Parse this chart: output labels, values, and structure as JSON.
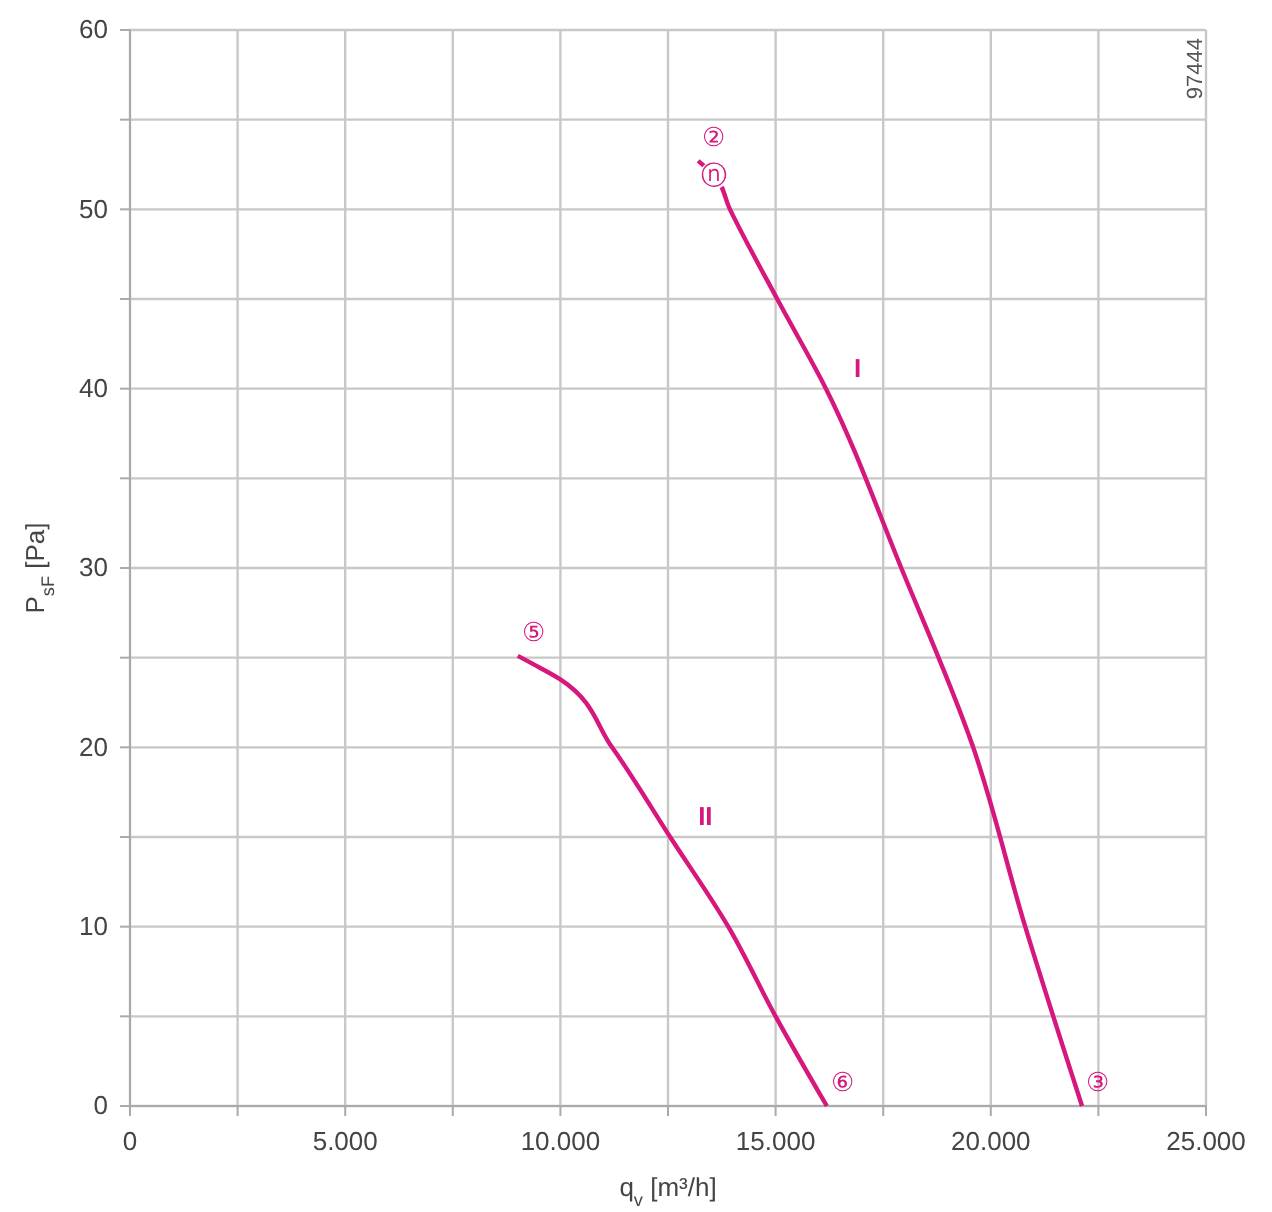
{
  "chart_data": {
    "type": "line",
    "xlabel": "q$_{v}$ [m³/h]",
    "ylabel": "P$_{sF}$ [Pa]",
    "xlim": [
      0,
      25000
    ],
    "ylim": [
      0,
      60
    ],
    "xticks": [
      0,
      {
        "value": 2500,
        "label": null
      },
      {
        "value": 5000,
        "label": "5.000"
      },
      {
        "value": 7500,
        "label": null
      },
      {
        "value": 10000,
        "label": "10.000"
      },
      {
        "value": 12500,
        "label": null
      },
      {
        "value": 15000,
        "label": "15.000"
      },
      {
        "value": 17500,
        "label": null
      },
      {
        "value": 20000,
        "label": "20.000"
      },
      {
        "value": 22500,
        "label": null
      },
      {
        "value": 25000,
        "label": "25.000"
      }
    ],
    "yticks": [
      0,
      {
        "value": 5,
        "label": null
      },
      10,
      {
        "value": 15,
        "label": null
      },
      20,
      {
        "value": 25,
        "label": null
      },
      30,
      {
        "value": 35,
        "label": null
      },
      40,
      {
        "value": 45,
        "label": null
      },
      50,
      {
        "value": 55,
        "label": null
      },
      60
    ],
    "grid": true,
    "legend": false,
    "marker": "none",
    "line_style": "solid",
    "series": [
      {
        "name": "I",
        "color": "#d6177e",
        "x": [
          13200,
          13570,
          13940,
          15060,
          16170,
          17920,
          19590,
          20800,
          22120
        ],
        "values": [
          52.7,
          51.9,
          50,
          44.9,
          40,
          30,
          20,
          10,
          0
        ]
      },
      {
        "name": "II",
        "color": "#d6177e",
        "x": [
          9010,
          9400,
          9990,
          11200,
          12550,
          13900,
          15000,
          16190
        ],
        "values": [
          25.1,
          24.6,
          23.8,
          20,
          15,
          10,
          5,
          0
        ]
      }
    ],
    "annotations": [
      {
        "text": "②",
        "x": 13200,
        "y": 52.7
      },
      {
        "text": "ⓝ",
        "x": 13570,
        "y": 51.9
      },
      {
        "text": "③",
        "x": 22120,
        "y": 0
      },
      {
        "text": "⑤",
        "x": 9010,
        "y": 25.1
      },
      {
        "text": "⑥",
        "x": 16190,
        "y": 0
      },
      "97444"
    ]
  }
}
